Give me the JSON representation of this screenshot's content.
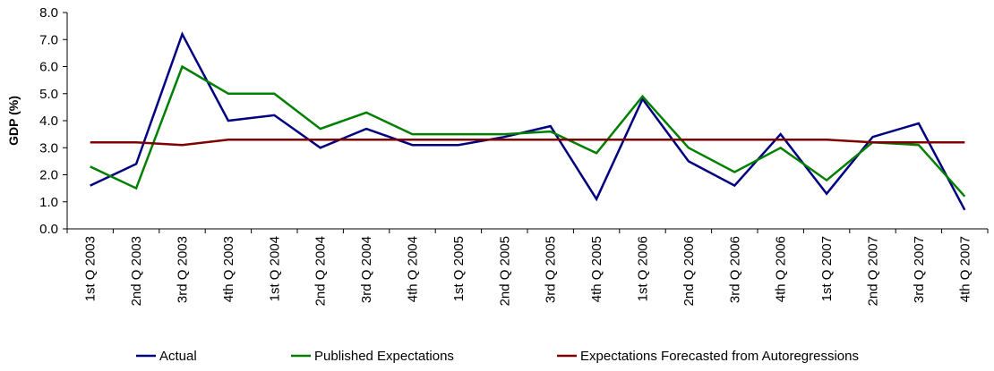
{
  "chart_data": {
    "type": "line",
    "categories": [
      "1st Q 2003",
      "2nd Q 2003",
      "3rd Q 2003",
      "4th Q 2003",
      "1st Q 2004",
      "2nd Q 2004",
      "3rd Q 2004",
      "4th Q 2004",
      "1st Q 2005",
      "2nd Q 2005",
      "3rd Q 2005",
      "4th Q 2005",
      "1st Q 2006",
      "2nd Q 2006",
      "3rd Q 2006",
      "4th Q 2006",
      "1st Q 2007",
      "2nd Q 2007",
      "3rd Q 2007",
      "4th Q 2007"
    ],
    "series": [
      {
        "name": "Actual",
        "color": "#000080",
        "values": [
          1.6,
          2.4,
          7.2,
          4.0,
          4.2,
          3.0,
          3.7,
          3.1,
          3.1,
          3.4,
          3.8,
          1.1,
          4.8,
          2.5,
          1.6,
          3.5,
          1.3,
          3.4,
          3.9,
          0.7
        ]
      },
      {
        "name": "Published Expectations",
        "color": "#008000",
        "values": [
          2.3,
          1.5,
          6.0,
          5.0,
          5.0,
          3.7,
          4.3,
          3.5,
          3.5,
          3.5,
          3.6,
          2.8,
          4.9,
          3.0,
          2.1,
          3.0,
          1.8,
          3.2,
          3.1,
          1.2
        ]
      },
      {
        "name": "Expectations Forecasted from Autoregressions",
        "color": "#800000",
        "values": [
          3.2,
          3.2,
          3.1,
          3.3,
          3.3,
          3.3,
          3.3,
          3.3,
          3.3,
          3.3,
          3.3,
          3.3,
          3.3,
          3.3,
          3.3,
          3.3,
          3.3,
          3.2,
          3.2,
          3.2
        ]
      }
    ],
    "title": "",
    "xlabel": "",
    "ylabel": "GDP (%)",
    "ylim": [
      0,
      8
    ],
    "yticks": [
      "0.0",
      "1.0",
      "2.0",
      "3.0",
      "4.0",
      "5.0",
      "6.0",
      "7.0",
      "8.0"
    ],
    "grid": false,
    "legend_position": "bottom"
  }
}
